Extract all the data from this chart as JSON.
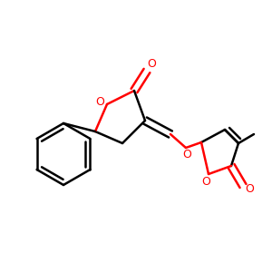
{
  "bg_color": "#ffffff",
  "bond_color": "#000000",
  "red_color": "#ff0000",
  "bond_width": 1.8,
  "figsize": [
    3.0,
    3.0
  ],
  "dpi": 100,
  "xlim": [
    0,
    300
  ],
  "ylim": [
    0,
    300
  ]
}
